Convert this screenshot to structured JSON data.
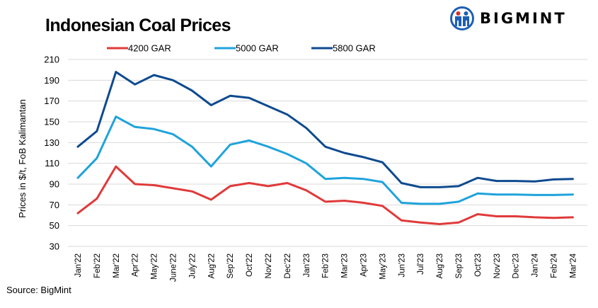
{
  "brand": {
    "name": "BIGMINT",
    "icon": "bigmint-logo-icon",
    "colors": {
      "blue": "#1e5fb6",
      "red": "#d32f2f"
    }
  },
  "footer": {
    "source": "Source: BigMint"
  },
  "chart_data": {
    "type": "line",
    "title": "Indonesian Coal Prices",
    "xlabel": "",
    "ylabel": "Prices in $/t, FoB Kalimantan",
    "ylim": [
      30,
      210
    ],
    "yticks": [
      30,
      50,
      70,
      90,
      110,
      130,
      150,
      170,
      190,
      210
    ],
    "grid": true,
    "legend_position": "top",
    "categories": [
      "Jan'22",
      "Feb'22",
      "Mar'22",
      "Apr'22",
      "May'22",
      "June'22",
      "July'22",
      "Aug'22",
      "Sep'22",
      "Oct'22",
      "Nov'22",
      "Dec'22",
      "Jan'23",
      "Feb'23",
      "Mar'23",
      "Apr'23",
      "May'23",
      "Jun'23",
      "Jul'23",
      "Aug'23",
      "Sep'23",
      "Oct'23",
      "Nov'23",
      "Dec'23",
      "Jan'24",
      "Feb'24",
      "Mar'24"
    ],
    "series": [
      {
        "name": "4200 GAR",
        "color": "#e03a3a",
        "values": [
          62,
          76,
          107,
          90,
          89,
          86,
          83,
          75,
          88,
          91,
          88,
          91,
          84,
          73,
          74,
          72,
          69,
          55,
          53,
          51.5,
          53,
          61,
          59,
          59,
          58,
          57.5,
          58
        ]
      },
      {
        "name": "5000 GAR",
        "color": "#1fa3dc",
        "values": [
          96,
          115,
          155,
          145,
          143,
          138,
          126,
          107,
          128,
          132,
          126,
          119,
          110,
          95,
          96,
          95,
          92,
          72,
          71,
          71,
          73,
          81,
          80,
          80,
          79.5,
          79.5,
          80
        ]
      },
      {
        "name": "5800 GAR",
        "color": "#0e4a8f",
        "values": [
          126,
          141,
          198,
          186,
          195,
          190,
          180,
          166,
          175,
          173,
          165,
          157,
          144,
          126,
          120,
          116,
          111,
          91,
          87,
          87,
          88,
          96,
          93,
          93,
          92.5,
          94.5,
          95
        ]
      }
    ]
  }
}
